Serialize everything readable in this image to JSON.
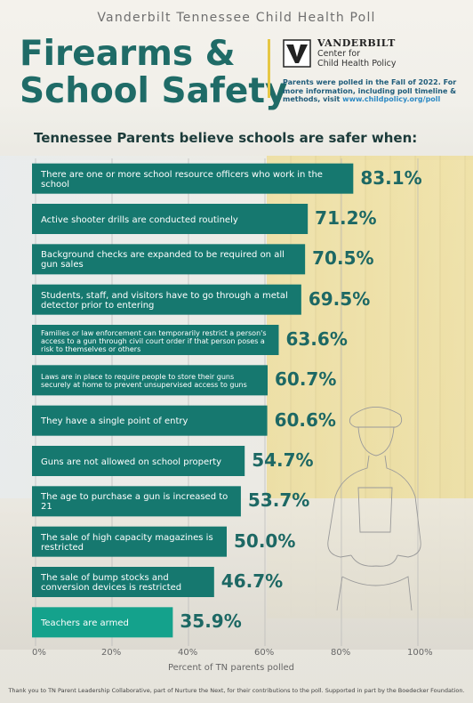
{
  "header": {
    "poll_name": "Vanderbilt Tennessee Child Health Poll",
    "title_line1": "Firearms &",
    "title_line2": "School Safety",
    "org_name": "VANDERBILT",
    "org_line1": "Center for",
    "org_line2": "Child Health Policy",
    "note_text": "Parents were polled in the Fall of 2022. For more information, including poll timeline & methods, visit",
    "note_link": "www.childpolicy.org/poll"
  },
  "subtitle": "Tennessee Parents believe schools are safer when:",
  "footer": "Thank you to TN Parent Leadership Collaborative, part of Nurture the Next, for their contributions to the poll. Supported in part by the Boedecker Foundation.",
  "colors": {
    "bar": "#16786f",
    "bar_last": "#14a28c",
    "title": "#1f6b67",
    "accent": "#e6c744"
  },
  "chart_data": {
    "type": "bar",
    "orientation": "horizontal",
    "categories": [
      "There are one or more school resource officers who work in the school",
      "Active shooter drills are conducted routinely",
      "Background checks are expanded to be required on all gun sales",
      "Students, staff, and visitors have to go through a metal detector prior to entering",
      "Families or law enforcement can temporarily restrict a person's access to a gun through civil court order if that person poses a risk to themselves or others",
      "Laws are in place to require people to store their guns securely at home to prevent unsupervised access to guns",
      "They have a single point of entry",
      "Guns are not allowed on school property",
      "The age to purchase a gun is increased to 21",
      "The sale of high capacity magazines is restricted",
      "The sale of bump stocks and conversion devices is restricted",
      "Teachers are armed"
    ],
    "values": [
      83.1,
      71.2,
      70.5,
      69.5,
      63.6,
      60.7,
      60.6,
      54.7,
      53.7,
      50.0,
      46.7,
      35.9
    ],
    "value_labels": [
      "83.1%",
      "71.2%",
      "70.5%",
      "69.5%",
      "63.6%",
      "60.7%",
      "60.6%",
      "54.7%",
      "53.7%",
      "50.0%",
      "46.7%",
      "35.9%"
    ],
    "small_text": [
      false,
      false,
      false,
      false,
      true,
      true,
      false,
      false,
      false,
      false,
      false,
      false
    ],
    "xlabel": "Percent of TN parents polled",
    "xlim": [
      0,
      100
    ],
    "ticks": [
      "0%",
      "20%",
      "40%",
      "60%",
      "80%",
      "100%"
    ],
    "tick_values": [
      0,
      20,
      40,
      60,
      80,
      100
    ],
    "grid": true
  }
}
